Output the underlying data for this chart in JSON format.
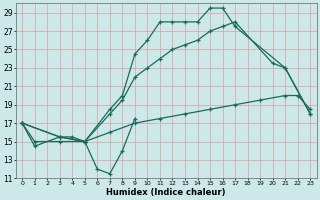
{
  "xlabel": "Humidex (Indice chaleur)",
  "bg_color": "#cce8e8",
  "grid_color": "#daa0a0",
  "line_color": "#1a6b5a",
  "xlim": [
    -0.5,
    23.5
  ],
  "ylim": [
    11,
    30
  ],
  "yticks": [
    11,
    13,
    15,
    17,
    19,
    21,
    23,
    25,
    27,
    29
  ],
  "xticks": [
    0,
    1,
    2,
    3,
    4,
    5,
    6,
    7,
    8,
    9,
    10,
    11,
    12,
    13,
    14,
    15,
    16,
    17,
    18,
    19,
    20,
    21,
    22,
    23
  ],
  "series": [
    {
      "x": [
        0,
        1,
        3,
        4,
        5,
        6,
        7,
        8,
        9
      ],
      "y": [
        17,
        14.5,
        15.5,
        15.5,
        15,
        12,
        11.5,
        14,
        17.5
      ]
    },
    {
      "x": [
        0,
        3,
        5,
        7,
        8,
        9,
        10,
        11,
        12,
        13,
        14,
        15,
        16,
        17,
        21,
        23
      ],
      "y": [
        17,
        15.5,
        15,
        18.5,
        20,
        24.5,
        26,
        28,
        28,
        28,
        28,
        29.5,
        29.5,
        27.5,
        23,
        18
      ]
    },
    {
      "x": [
        0,
        3,
        5,
        7,
        8,
        9,
        10,
        11,
        12,
        13,
        14,
        15,
        16,
        17,
        20,
        21,
        23
      ],
      "y": [
        17,
        15.5,
        15,
        18,
        19.5,
        22,
        23,
        24,
        25,
        25.5,
        26,
        27,
        27.5,
        28,
        23.5,
        23,
        18
      ]
    },
    {
      "x": [
        0,
        1,
        3,
        5,
        7,
        9,
        11,
        13,
        15,
        17,
        19,
        21,
        22,
        23
      ],
      "y": [
        17,
        15,
        15,
        15,
        16,
        17,
        17.5,
        18,
        18.5,
        19,
        19.5,
        20,
        20,
        18.5
      ]
    }
  ]
}
